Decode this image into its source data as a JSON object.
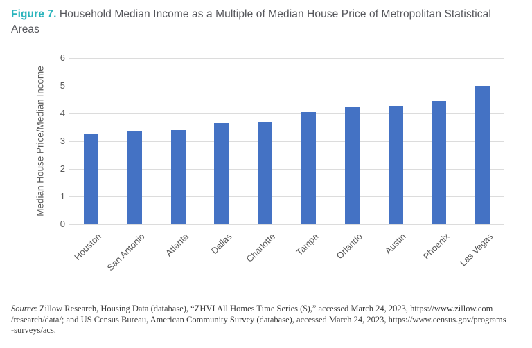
{
  "title": {
    "figure_label": "Figure 7.",
    "text": " Household Median Income as a Multiple of Median House Price of Metropolitan Statistical Areas"
  },
  "chart_data": {
    "type": "bar",
    "title": "Figure 7. Household Median Income as a Multiple of Median House Price of Metropolitan Statistical Areas",
    "categories": [
      "Houston",
      "San Antonio",
      "Atlanta",
      "Dallas",
      "Charlotte",
      "Tampa",
      "Orlando",
      "Austin",
      "Phoenix",
      "Las Vegas"
    ],
    "values": [
      3.27,
      3.36,
      3.4,
      3.66,
      3.69,
      4.05,
      4.24,
      4.27,
      4.46,
      5.0
    ],
    "xlabel": "",
    "ylabel": "Median House Price/Median Income",
    "ylim": [
      0,
      6
    ],
    "ytick_step": 1,
    "grid": "horizontal",
    "legend": "none"
  },
  "colors": {
    "bar": "#4472c4",
    "gridline": "#dcdcdc",
    "axis_text": "#595959",
    "title_accent": "#29b4bc",
    "title_text": "#55565b",
    "source_text": "#3a3a3a"
  },
  "source": {
    "label": "Source",
    "line1_rest": ": Zillow Research, Housing Data (database), “ZHVI All Homes Time Series ($),” accessed March 24, 2023, https://www.zillow.com",
    "line2": "/research/data/; and US Census Bureau, American Community Survey (database), accessed March 24, 2023, https://www.census.gov/programs",
    "line3": "-surveys/acs."
  }
}
